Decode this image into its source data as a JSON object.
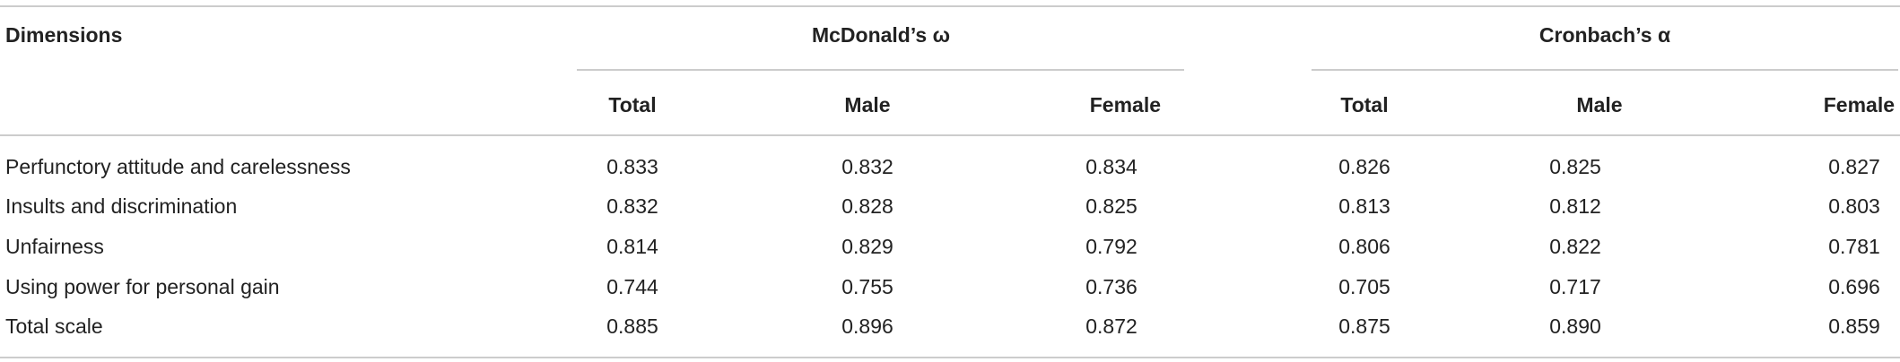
{
  "table": {
    "header": "Dimensions",
    "groups": [
      {
        "title": "McDonald’s ω",
        "columns": [
          "Total",
          "Male",
          "Female"
        ]
      },
      {
        "title": "Cronbach’s α",
        "columns": [
          "Total",
          "Male",
          "Female"
        ]
      }
    ],
    "rows": [
      {
        "label": "Perfunctory attitude and carelessness",
        "values": [
          "0.833",
          "0.832",
          "0.834",
          "0.826",
          "0.825",
          "0.827"
        ]
      },
      {
        "label": "Insults and discrimination",
        "values": [
          "0.832",
          "0.828",
          "0.825",
          "0.813",
          "0.812",
          "0.803"
        ]
      },
      {
        "label": "Unfairness",
        "values": [
          "0.814",
          "0.829",
          "0.792",
          "0.806",
          "0.822",
          "0.781"
        ]
      },
      {
        "label": "Using power for personal gain",
        "values": [
          "0.744",
          "0.755",
          "0.736",
          "0.705",
          "0.717",
          "0.696"
        ]
      },
      {
        "label": "Total scale",
        "values": [
          "0.885",
          "0.896",
          "0.872",
          "0.875",
          "0.890",
          "0.859"
        ]
      }
    ]
  }
}
